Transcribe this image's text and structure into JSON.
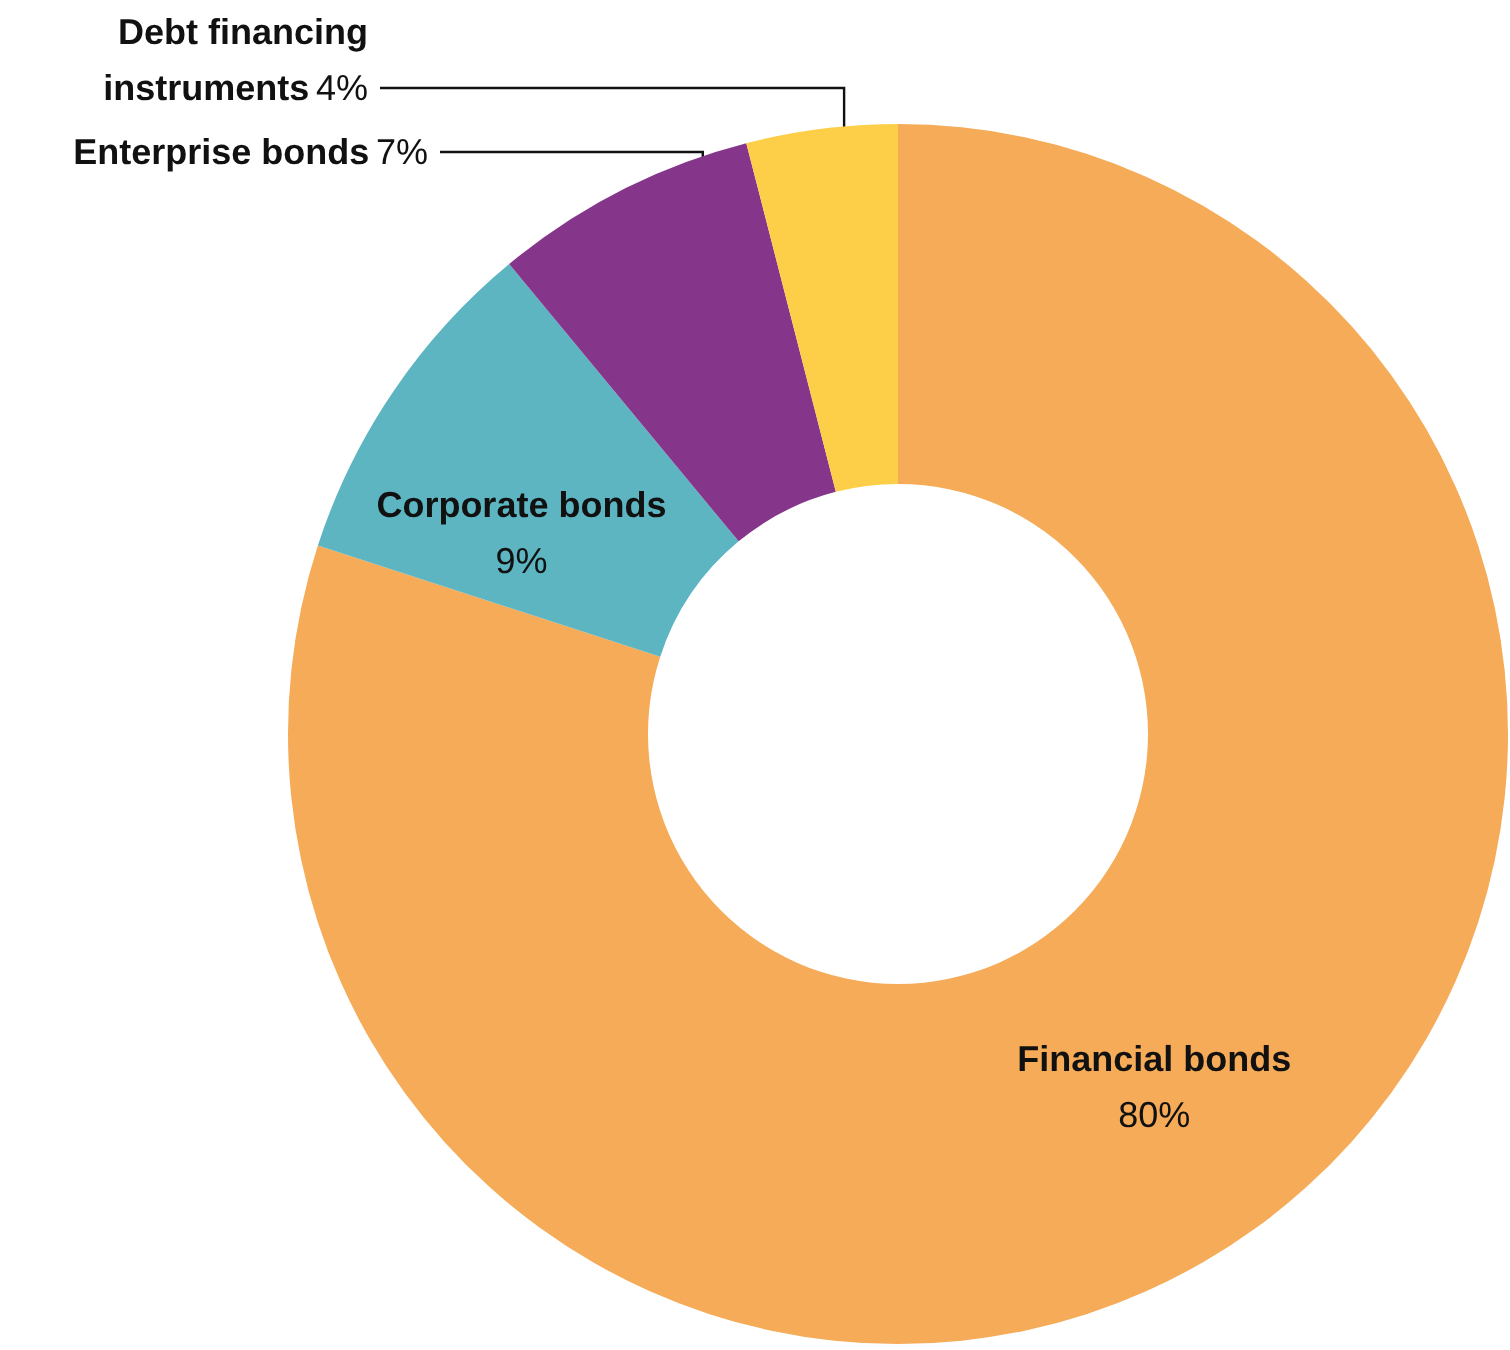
{
  "chart_data": {
    "type": "donut",
    "categories": [
      "Financial bonds",
      "Corporate bonds",
      "Enterprise bonds",
      "Debt financing instruments"
    ],
    "values": [
      80,
      9,
      7,
      4
    ],
    "colors": [
      "#f5ab57",
      "#5db5c2",
      "#85368b",
      "#fdcf48"
    ],
    "value_labels": [
      "80%",
      "9%",
      "7%",
      "4%"
    ],
    "legend": false
  }
}
